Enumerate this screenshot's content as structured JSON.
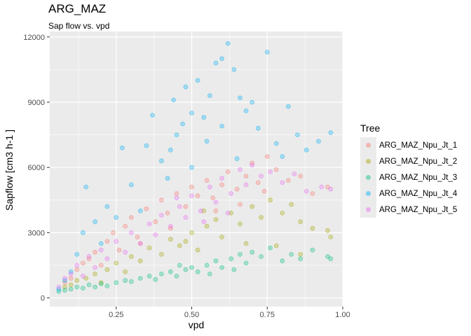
{
  "title": "ARG_MAZ",
  "subtitle": "Sap flow vs. vpd",
  "chart_data": {
    "type": "scatter",
    "title": "ARG_MAZ",
    "subtitle": "Sap flow vs. vpd",
    "xlabel": "vpd",
    "ylabel": "Sapflow [cm3 h-1 ]",
    "xlim": [
      0.03,
      1.0
    ],
    "ylim": [
      -400,
      12250
    ],
    "xticks": [
      0.25,
      0.5,
      0.75,
      1.0
    ],
    "xtick_labels": [
      "0.25",
      "0.50",
      "0.75",
      "1.00"
    ],
    "yticks": [
      0,
      3000,
      6000,
      9000,
      12000
    ],
    "ytick_labels": [
      "0",
      "3000",
      "6000",
      "9000",
      "12000"
    ],
    "grid": true,
    "legend": {
      "title": "Tree",
      "position": "right"
    },
    "series": [
      {
        "name": "ARG_MAZ_Npu_Jt_1",
        "color": "#F8766D",
        "points": [
          [
            0.08,
            700
          ],
          [
            0.1,
            900
          ],
          [
            0.12,
            1300
          ],
          [
            0.14,
            1600
          ],
          [
            0.16,
            1800
          ],
          [
            0.18,
            2100
          ],
          [
            0.2,
            1500
          ],
          [
            0.22,
            2600
          ],
          [
            0.24,
            3000
          ],
          [
            0.26,
            2200
          ],
          [
            0.28,
            3300
          ],
          [
            0.3,
            3700
          ],
          [
            0.32,
            2800
          ],
          [
            0.35,
            4100
          ],
          [
            0.38,
            3500
          ],
          [
            0.4,
            4500
          ],
          [
            0.42,
            3900
          ],
          [
            0.45,
            4800
          ],
          [
            0.48,
            4200
          ],
          [
            0.5,
            5100
          ],
          [
            0.52,
            4700
          ],
          [
            0.55,
            5400
          ],
          [
            0.57,
            4600
          ],
          [
            0.6,
            5200
          ],
          [
            0.62,
            5800
          ],
          [
            0.65,
            5000
          ],
          [
            0.68,
            5600
          ],
          [
            0.7,
            6200
          ],
          [
            0.72,
            5300
          ],
          [
            0.75,
            6500
          ],
          [
            0.78,
            5900
          ],
          [
            0.82,
            5400
          ],
          [
            0.86,
            5600
          ],
          [
            0.9,
            4800
          ],
          [
            0.95,
            5100
          ],
          [
            0.33,
            2500
          ],
          [
            0.43,
            3200
          ],
          [
            0.58,
            4000
          ],
          [
            0.66,
            4300
          ],
          [
            0.74,
            4900
          ]
        ]
      },
      {
        "name": "ARG_MAZ_Npu_Jt_2",
        "color": "#A3A500",
        "points": [
          [
            0.08,
            500
          ],
          [
            0.1,
            600
          ],
          [
            0.12,
            800
          ],
          [
            0.15,
            900
          ],
          [
            0.18,
            1100
          ],
          [
            0.2,
            700
          ],
          [
            0.22,
            1300
          ],
          [
            0.25,
            1600
          ],
          [
            0.28,
            1200
          ],
          [
            0.3,
            1900
          ],
          [
            0.33,
            1700
          ],
          [
            0.36,
            2300
          ],
          [
            0.4,
            2000
          ],
          [
            0.43,
            2700
          ],
          [
            0.46,
            2400
          ],
          [
            0.5,
            3000
          ],
          [
            0.52,
            2200
          ],
          [
            0.55,
            3300
          ],
          [
            0.58,
            3600
          ],
          [
            0.6,
            2800
          ],
          [
            0.63,
            3900
          ],
          [
            0.66,
            3400
          ],
          [
            0.7,
            4200
          ],
          [
            0.73,
            3700
          ],
          [
            0.76,
            4500
          ],
          [
            0.8,
            3900
          ],
          [
            0.83,
            4300
          ],
          [
            0.86,
            3500
          ],
          [
            0.9,
            3200
          ],
          [
            0.95,
            3100
          ],
          [
            0.96,
            2800
          ],
          [
            0.48,
            2600
          ],
          [
            0.54,
            4000
          ],
          [
            0.68,
            2500
          ],
          [
            0.78,
            2400
          ],
          [
            0.86,
            2000
          ]
        ]
      },
      {
        "name": "ARG_MAZ_Npu_Jt_3",
        "color": "#00BF7D",
        "points": [
          [
            0.06,
            300
          ],
          [
            0.08,
            350
          ],
          [
            0.1,
            400
          ],
          [
            0.12,
            500
          ],
          [
            0.14,
            450
          ],
          [
            0.16,
            600
          ],
          [
            0.18,
            500
          ],
          [
            0.2,
            650
          ],
          [
            0.22,
            550
          ],
          [
            0.25,
            700
          ],
          [
            0.28,
            800
          ],
          [
            0.3,
            750
          ],
          [
            0.33,
            900
          ],
          [
            0.36,
            1000
          ],
          [
            0.38,
            850
          ],
          [
            0.4,
            1100
          ],
          [
            0.43,
            1200
          ],
          [
            0.45,
            1000
          ],
          [
            0.48,
            1300
          ],
          [
            0.5,
            1400
          ],
          [
            0.52,
            1200
          ],
          [
            0.55,
            1500
          ],
          [
            0.58,
            1700
          ],
          [
            0.6,
            1400
          ],
          [
            0.63,
            1800
          ],
          [
            0.66,
            2000
          ],
          [
            0.68,
            1600
          ],
          [
            0.7,
            2100
          ],
          [
            0.73,
            1900
          ],
          [
            0.76,
            2300
          ],
          [
            0.8,
            1700
          ],
          [
            0.83,
            2000
          ],
          [
            0.86,
            1800
          ],
          [
            0.9,
            2200
          ],
          [
            0.95,
            1900
          ],
          [
            0.96,
            1800
          ],
          [
            0.46,
            1500
          ],
          [
            0.56,
            1100
          ],
          [
            0.64,
            1300
          ]
        ]
      },
      {
        "name": "ARG_MAZ_Npu_Jt_4",
        "color": "#00B0F6",
        "points": [
          [
            0.06,
            400
          ],
          [
            0.08,
            800
          ],
          [
            0.1,
            1200
          ],
          [
            0.12,
            2000
          ],
          [
            0.14,
            3000
          ],
          [
            0.15,
            5100
          ],
          [
            0.18,
            3500
          ],
          [
            0.2,
            2500
          ],
          [
            0.22,
            4200
          ],
          [
            0.25,
            3700
          ],
          [
            0.27,
            6900
          ],
          [
            0.3,
            5200
          ],
          [
            0.33,
            4000
          ],
          [
            0.35,
            7000
          ],
          [
            0.37,
            8400
          ],
          [
            0.4,
            6300
          ],
          [
            0.42,
            5500
          ],
          [
            0.44,
            9100
          ],
          [
            0.45,
            7500
          ],
          [
            0.47,
            8000
          ],
          [
            0.48,
            9700
          ],
          [
            0.5,
            8500
          ],
          [
            0.52,
            10000
          ],
          [
            0.54,
            8300
          ],
          [
            0.56,
            9300
          ],
          [
            0.58,
            10800
          ],
          [
            0.6,
            11000
          ],
          [
            0.62,
            11700
          ],
          [
            0.64,
            10500
          ],
          [
            0.66,
            9200
          ],
          [
            0.68,
            8600
          ],
          [
            0.7,
            9000
          ],
          [
            0.72,
            7800
          ],
          [
            0.75,
            11300
          ],
          [
            0.78,
            7100
          ],
          [
            0.82,
            8800
          ],
          [
            0.85,
            7500
          ],
          [
            0.88,
            6800
          ],
          [
            0.92,
            7200
          ],
          [
            0.96,
            7600
          ],
          [
            0.43,
            6800
          ],
          [
            0.55,
            7200
          ],
          [
            0.65,
            6400
          ],
          [
            0.8,
            6500
          ],
          [
            0.5,
            6000
          ],
          [
            0.6,
            7900
          ]
        ]
      },
      {
        "name": "ARG_MAZ_Npu_Jt_5",
        "color": "#E76BF3",
        "points": [
          [
            0.06,
            500
          ],
          [
            0.08,
            900
          ],
          [
            0.1,
            1100
          ],
          [
            0.12,
            1500
          ],
          [
            0.14,
            1000
          ],
          [
            0.16,
            1900
          ],
          [
            0.18,
            1400
          ],
          [
            0.2,
            2200
          ],
          [
            0.22,
            1800
          ],
          [
            0.25,
            2600
          ],
          [
            0.28,
            2100
          ],
          [
            0.3,
            3000
          ],
          [
            0.33,
            2500
          ],
          [
            0.36,
            3400
          ],
          [
            0.38,
            2900
          ],
          [
            0.4,
            3800
          ],
          [
            0.43,
            3300
          ],
          [
            0.46,
            4200
          ],
          [
            0.48,
            3700
          ],
          [
            0.5,
            4700
          ],
          [
            0.53,
            4000
          ],
          [
            0.56,
            5100
          ],
          [
            0.58,
            4400
          ],
          [
            0.6,
            5500
          ],
          [
            0.63,
            4800
          ],
          [
            0.66,
            5900
          ],
          [
            0.68,
            5200
          ],
          [
            0.7,
            6100
          ],
          [
            0.73,
            5600
          ],
          [
            0.76,
            5800
          ],
          [
            0.8,
            5300
          ],
          [
            0.84,
            5700
          ],
          [
            0.88,
            4900
          ],
          [
            0.93,
            5100
          ],
          [
            0.96,
            5000
          ],
          [
            0.45,
            4600
          ],
          [
            0.54,
            3500
          ],
          [
            0.62,
            3900
          ]
        ]
      }
    ]
  }
}
